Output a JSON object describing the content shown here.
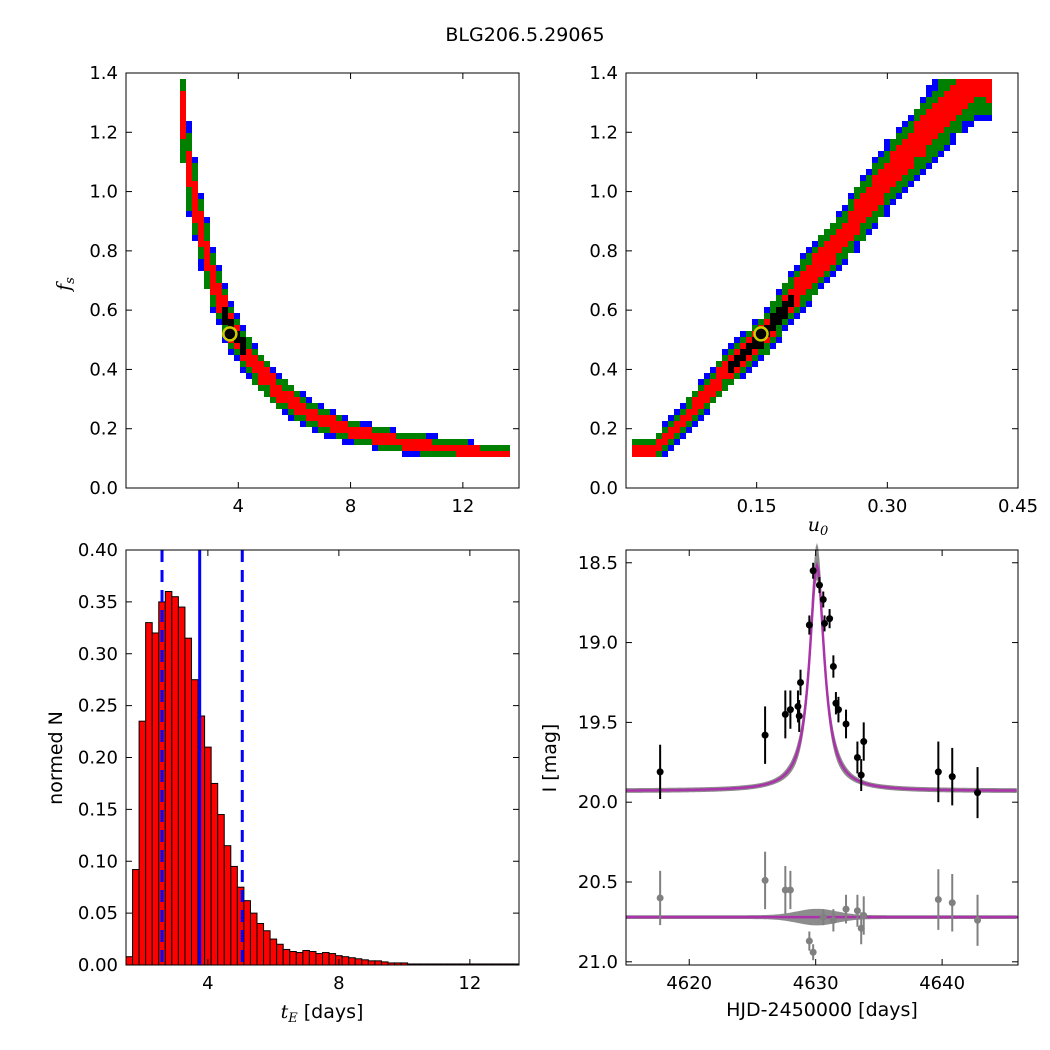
{
  "title": "BLG206.5.29065",
  "chart_data": [
    {
      "type": "heatmap",
      "panel": "tE-fs",
      "xlabel": "",
      "ylabel": "f_s",
      "ylabel_main": "f",
      "ylabel_sub": "s",
      "xlim": [
        0,
        14
      ],
      "ylim": [
        0.0,
        1.4
      ],
      "xticks": [
        4,
        8,
        12
      ],
      "xtick_labels": [
        "4",
        "8",
        "12"
      ],
      "yticks": [
        0.0,
        0.2,
        0.4,
        0.6,
        0.8,
        1.0,
        1.2,
        1.4
      ],
      "ytick_labels": [
        "0.0",
        "0.2",
        "0.4",
        "0.6",
        "0.8",
        "1.0",
        "1.2",
        "1.4"
      ],
      "levels": [
        "black",
        "red",
        "green",
        "blue"
      ],
      "ridge": [
        [
          1.9,
          1.38
        ],
        [
          2.2,
          1.1
        ],
        [
          2.6,
          0.9
        ],
        [
          3.1,
          0.7
        ],
        [
          3.7,
          0.55
        ],
        [
          4.5,
          0.42
        ],
        [
          5.5,
          0.32
        ],
        [
          6.5,
          0.25
        ],
        [
          8.0,
          0.19
        ],
        [
          10.0,
          0.15
        ],
        [
          13.5,
          0.11
        ]
      ],
      "best_fit": {
        "x": 3.7,
        "y": 0.52
      },
      "colors": {
        "black": "#000000",
        "red": "#ff0000",
        "green": "#008000",
        "blue": "#0000ff",
        "marker": "#cccc00"
      }
    },
    {
      "type": "heatmap",
      "panel": "u0-fs",
      "xlabel": "u_0",
      "xlabel_main": "u",
      "xlabel_sub": "0",
      "ylabel": "",
      "xlim": [
        0.0,
        0.45
      ],
      "ylim": [
        0.0,
        1.4
      ],
      "xticks": [
        0.15,
        0.3,
        0.45
      ],
      "xtick_labels": [
        "0.15",
        "0.30",
        "0.45"
      ],
      "yticks": [
        0.0,
        0.2,
        0.4,
        0.6,
        0.8,
        1.0,
        1.2,
        1.4
      ],
      "ytick_labels": [
        "0.0",
        "0.2",
        "0.4",
        "0.6",
        "0.8",
        "1.0",
        "1.2",
        "1.4"
      ],
      "ridge": [
        [
          0.03,
          0.12
        ],
        [
          0.07,
          0.24
        ],
        [
          0.11,
          0.38
        ],
        [
          0.16,
          0.52
        ],
        [
          0.2,
          0.68
        ],
        [
          0.25,
          0.85
        ],
        [
          0.3,
          1.05
        ],
        [
          0.35,
          1.22
        ],
        [
          0.4,
          1.38
        ]
      ],
      "best_fit": {
        "x": 0.155,
        "y": 0.52
      }
    },
    {
      "type": "bar",
      "panel": "tE-histogram",
      "xlabel_main": "t",
      "xlabel_sub": "E",
      "xlabel_rest": " [days]",
      "ylabel": "normed N",
      "xlim": [
        1.5,
        13.5
      ],
      "ylim": [
        0.0,
        0.4
      ],
      "xticks": [
        4,
        8,
        12
      ],
      "xtick_labels": [
        "4",
        "8",
        "12"
      ],
      "yticks": [
        0.0,
        0.05,
        0.1,
        0.15,
        0.2,
        0.25,
        0.3,
        0.35,
        0.4
      ],
      "ytick_labels": [
        "0.00",
        "0.05",
        "0.10",
        "0.15",
        "0.20",
        "0.25",
        "0.30",
        "0.35",
        "0.40"
      ],
      "bin_start": 1.5,
      "bin_width": 0.2,
      "values": [
        0.008,
        0.092,
        0.235,
        0.33,
        0.32,
        0.35,
        0.36,
        0.355,
        0.345,
        0.315,
        0.275,
        0.24,
        0.21,
        0.175,
        0.145,
        0.115,
        0.095,
        0.075,
        0.062,
        0.05,
        0.04,
        0.033,
        0.025,
        0.02,
        0.015,
        0.013,
        0.012,
        0.014,
        0.013,
        0.011,
        0.012,
        0.011,
        0.009,
        0.008,
        0.007,
        0.006,
        0.005,
        0.004,
        0.004,
        0.003,
        0.002,
        0.002,
        0.002,
        0.001,
        0.001,
        0.001,
        0.001,
        0.001,
        0.001,
        0.001,
        0.001,
        0.001,
        0.001,
        0.001,
        0.001,
        0.001,
        0.001,
        0.001,
        0.001,
        0.001
      ],
      "median": 3.75,
      "lower": 2.6,
      "upper": 5.05,
      "colors": {
        "bar": "#ff0000",
        "line": "#0000ff"
      }
    },
    {
      "type": "scatter",
      "panel": "light-curve",
      "xlabel": "HJD-2450000 [days]",
      "ylabel": "I [mag]",
      "xlim": [
        4615,
        4646
      ],
      "ylim": [
        21.02,
        18.42
      ],
      "xticks": [
        4620,
        4630,
        4640
      ],
      "xtick_labels": [
        "4620",
        "4630",
        "4640"
      ],
      "yticks": [
        18.5,
        19.0,
        19.5,
        20.0,
        20.5,
        21.0
      ],
      "ytick_labels": [
        "18.5",
        "19.0",
        "19.5",
        "20.0",
        "20.5",
        "21.0"
      ],
      "model": {
        "baseline": 19.93,
        "t0": 4630.1,
        "peak": 18.52,
        "width": 0.9
      },
      "residual_level": 20.72,
      "points": [
        {
          "x": 4617.7,
          "y": 19.81,
          "err": 0.17
        },
        {
          "x": 4626.0,
          "y": 19.58,
          "err": 0.18
        },
        {
          "x": 4627.6,
          "y": 19.45,
          "err": 0.15
        },
        {
          "x": 4628.0,
          "y": 19.42,
          "err": 0.12
        },
        {
          "x": 4628.6,
          "y": 19.4,
          "err": 0.1
        },
        {
          "x": 4628.7,
          "y": 19.46,
          "err": 0.1
        },
        {
          "x": 4628.8,
          "y": 19.25,
          "err": 0.08
        },
        {
          "x": 4629.5,
          "y": 18.89,
          "err": 0.06
        },
        {
          "x": 4629.8,
          "y": 18.55,
          "err": 0.05
        },
        {
          "x": 4630.3,
          "y": 18.64,
          "err": 0.05
        },
        {
          "x": 4630.6,
          "y": 18.73,
          "err": 0.05
        },
        {
          "x": 4630.7,
          "y": 18.88,
          "err": 0.05
        },
        {
          "x": 4631.1,
          "y": 18.85,
          "err": 0.06
        },
        {
          "x": 4631.4,
          "y": 19.15,
          "err": 0.07
        },
        {
          "x": 4631.6,
          "y": 19.38,
          "err": 0.07
        },
        {
          "x": 4631.8,
          "y": 19.42,
          "err": 0.08
        },
        {
          "x": 4632.4,
          "y": 19.51,
          "err": 0.09
        },
        {
          "x": 4633.3,
          "y": 19.72,
          "err": 0.1
        },
        {
          "x": 4633.6,
          "y": 19.83,
          "err": 0.1
        },
        {
          "x": 4633.8,
          "y": 19.62,
          "err": 0.12
        },
        {
          "x": 4639.7,
          "y": 19.81,
          "err": 0.19
        },
        {
          "x": 4640.8,
          "y": 19.84,
          "err": 0.18
        },
        {
          "x": 4642.8,
          "y": 19.94,
          "err": 0.16
        }
      ],
      "residuals": [
        {
          "x": 4617.7,
          "y": 20.6,
          "err": 0.17
        },
        {
          "x": 4626.0,
          "y": 20.49,
          "err": 0.18
        },
        {
          "x": 4627.6,
          "y": 20.55,
          "err": 0.15
        },
        {
          "x": 4628.0,
          "y": 20.55,
          "err": 0.12
        },
        {
          "x": 4629.5,
          "y": 20.87,
          "err": 0.06
        },
        {
          "x": 4629.8,
          "y": 20.94,
          "err": 0.05
        },
        {
          "x": 4630.6,
          "y": 20.72,
          "err": 0.05
        },
        {
          "x": 4631.4,
          "y": 20.74,
          "err": 0.07
        },
        {
          "x": 4632.4,
          "y": 20.67,
          "err": 0.09
        },
        {
          "x": 4633.3,
          "y": 20.68,
          "err": 0.1
        },
        {
          "x": 4633.6,
          "y": 20.79,
          "err": 0.1
        },
        {
          "x": 4633.8,
          "y": 20.71,
          "err": 0.12
        },
        {
          "x": 4639.7,
          "y": 20.61,
          "err": 0.19
        },
        {
          "x": 4640.8,
          "y": 20.63,
          "err": 0.18
        },
        {
          "x": 4642.8,
          "y": 20.74,
          "err": 0.16
        }
      ],
      "colors": {
        "point": "#000000",
        "residual": "#808080",
        "band": "#808080",
        "model": "#aa33aa"
      }
    }
  ]
}
